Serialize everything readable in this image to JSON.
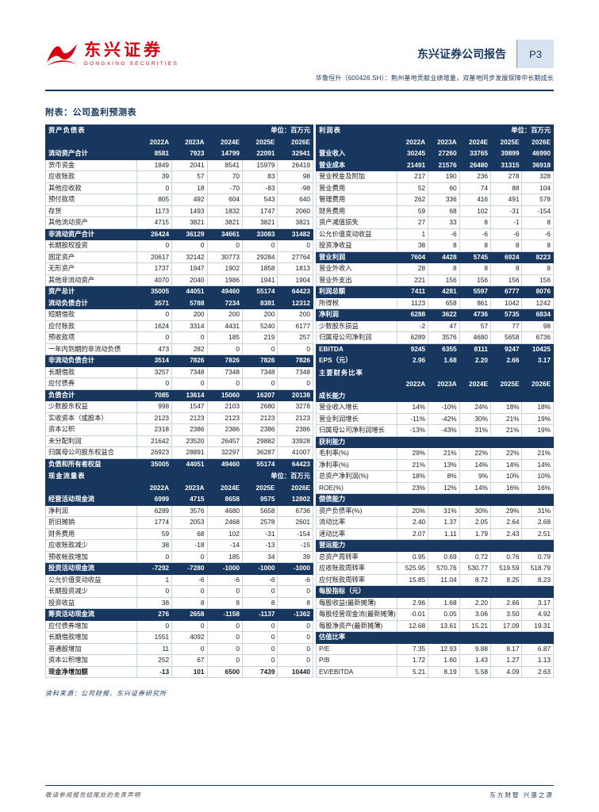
{
  "colors": {
    "navy": "#17375E",
    "brand_red": "#D7000F",
    "page_badge_bg": "#D9E2F0",
    "grid_line": "#C9D3E0"
  },
  "icons": {
    "brand_logo": "dongxing-red-swoosh-emblem"
  },
  "brand": {
    "name_cn": "东兴证券",
    "name_en": "DONGXING SECURITIES"
  },
  "header": {
    "report_label": "东兴证券公司报告",
    "page_number": "P3",
    "subtitle": "华鲁恒升（600426.SH）：荆州基地贡献业绩增量，双基地同步发展保障中长期成长"
  },
  "section_title": "附表：公司盈利预测表",
  "unit_label": "单位：百万元",
  "years": [
    "2022A",
    "2023A",
    "2024E",
    "2025E",
    "2026E"
  ],
  "tables": {
    "balance_sheet": {
      "title": "资产负债表",
      "show_unit": true,
      "rows": [
        {
          "label": "流动资产合计",
          "style": "hl",
          "values": [
            "8581",
            "7923",
            "14799",
            "22091",
            "32941"
          ]
        },
        {
          "label": "货币资金",
          "style": "normal",
          "values": [
            "1849",
            "2041",
            "8541",
            "15979",
            "26419"
          ]
        },
        {
          "label": "应收账款",
          "style": "normal",
          "values": [
            "39",
            "57",
            "70",
            "83",
            "98"
          ]
        },
        {
          "label": "其他应收款",
          "style": "normal",
          "values": [
            "0",
            "18",
            "-70",
            "-83",
            "-98"
          ]
        },
        {
          "label": "预付款项",
          "style": "normal",
          "values": [
            "805",
            "492",
            "604",
            "543",
            "640"
          ]
        },
        {
          "label": "存货",
          "style": "normal",
          "values": [
            "1173",
            "1493",
            "1832",
            "1747",
            "2060"
          ]
        },
        {
          "label": "其他流动资产",
          "style": "normal",
          "values": [
            "4715",
            "3821",
            "3821",
            "3821",
            "3821"
          ]
        },
        {
          "label": "非流动资产合计",
          "style": "hl",
          "values": [
            "26424",
            "36129",
            "34661",
            "33083",
            "31482"
          ]
        },
        {
          "label": "长期股权投资",
          "style": "normal",
          "values": [
            "0",
            "0",
            "0",
            "0",
            "0"
          ]
        },
        {
          "label": "固定资产",
          "style": "normal",
          "values": [
            "20617",
            "32142",
            "30773",
            "29284",
            "27764"
          ]
        },
        {
          "label": "无形资产",
          "style": "normal",
          "values": [
            "1737",
            "1947",
            "1902",
            "1858",
            "1813"
          ]
        },
        {
          "label": "其他非流动资产",
          "style": "normal",
          "values": [
            "4070",
            "2040",
            "1986",
            "1941",
            "1904"
          ]
        },
        {
          "label": "资产总计",
          "style": "hl",
          "values": [
            "35005",
            "44051",
            "49460",
            "55174",
            "64423"
          ]
        },
        {
          "label": "流动负债合计",
          "style": "hl",
          "values": [
            "3571",
            "5788",
            "7234",
            "8381",
            "12312"
          ]
        },
        {
          "label": "短期借款",
          "style": "normal",
          "values": [
            "0",
            "200",
            "200",
            "200",
            "200"
          ]
        },
        {
          "label": "应付账款",
          "style": "normal",
          "values": [
            "1624",
            "3314",
            "4431",
            "5240",
            "6177"
          ]
        },
        {
          "label": "预收款项",
          "style": "normal",
          "values": [
            "0",
            "0",
            "185",
            "219",
            "257"
          ]
        },
        {
          "label": "一年内到期的非流动负债",
          "style": "normal",
          "values": [
            "473",
            "282",
            "0",
            "0",
            "0"
          ]
        },
        {
          "label": "非流动负债合计",
          "style": "hl",
          "values": [
            "3514",
            "7826",
            "7826",
            "7826",
            "7826"
          ]
        },
        {
          "label": "长期借款",
          "style": "normal",
          "values": [
            "3257",
            "7348",
            "7348",
            "7348",
            "7348"
          ]
        },
        {
          "label": "应付债券",
          "style": "normal",
          "values": [
            "0",
            "0",
            "0",
            "0",
            "0"
          ]
        },
        {
          "label": "负债合计",
          "style": "hl",
          "values": [
            "7085",
            "13614",
            "15060",
            "16207",
            "20138"
          ]
        },
        {
          "label": "少数股东权益",
          "style": "normal",
          "values": [
            "998",
            "1547",
            "2103",
            "2680",
            "3278"
          ]
        },
        {
          "label": "实收资本（或股本）",
          "style": "normal",
          "values": [
            "2123",
            "2123",
            "2123",
            "2123",
            "2123"
          ]
        },
        {
          "label": "资本公积",
          "style": "normal",
          "values": [
            "2318",
            "2386",
            "2386",
            "2386",
            "2386"
          ]
        },
        {
          "label": "未分配利润",
          "style": "normal",
          "values": [
            "21642",
            "23520",
            "26457",
            "29882",
            "33928"
          ]
        },
        {
          "label": "归属母公司股东权益合",
          "style": "normal",
          "values": [
            "26923",
            "28891",
            "32297",
            "36287",
            "41007"
          ]
        },
        {
          "label": "负债和所有者权益",
          "style": "hl",
          "values": [
            "35005",
            "44051",
            "49460",
            "55174",
            "64423"
          ]
        }
      ]
    },
    "cash_flow": {
      "title": "现金流量表",
      "show_unit": true,
      "rows": [
        {
          "label": "经营活动现金流",
          "style": "hl",
          "values": [
            "6999",
            "4715",
            "8658",
            "9575",
            "12802"
          ]
        },
        {
          "label": "净利润",
          "style": "normal",
          "values": [
            "6289",
            "3576",
            "4680",
            "5658",
            "6736"
          ]
        },
        {
          "label": "折旧摊销",
          "style": "normal",
          "values": [
            "1774",
            "2053",
            "2468",
            "2578",
            "2601"
          ]
        },
        {
          "label": "财务费用",
          "style": "normal",
          "values": [
            "59",
            "68",
            "102",
            "-31",
            "-154"
          ]
        },
        {
          "label": "应收账款减少",
          "style": "normal",
          "values": [
            "38",
            "-18",
            "-14",
            "-13",
            "-15"
          ]
        },
        {
          "label": "预收帐款增加",
          "style": "normal",
          "values": [
            "0",
            "0",
            "185",
            "34",
            "39"
          ]
        },
        {
          "label": "投资活动现金流",
          "style": "hl",
          "values": [
            "-7292",
            "-7280",
            "-1000",
            "-1000",
            "-1000"
          ]
        },
        {
          "label": "公允价值变动收益",
          "style": "normal",
          "values": [
            "1",
            "-6",
            "-6",
            "-6",
            "-6"
          ]
        },
        {
          "label": "长期投资减少",
          "style": "normal",
          "values": [
            "0",
            "0",
            "0",
            "0",
            "0"
          ]
        },
        {
          "label": "投资收益",
          "style": "normal",
          "values": [
            "38",
            "8",
            "8",
            "8",
            "8"
          ]
        },
        {
          "label": "筹资活动现金流",
          "style": "hl",
          "values": [
            "276",
            "2658",
            "-1158",
            "-1137",
            "-1362"
          ]
        },
        {
          "label": "应付债券增加",
          "style": "normal",
          "values": [
            "0",
            "0",
            "0",
            "0",
            "0"
          ]
        },
        {
          "label": "长期借款增加",
          "style": "normal",
          "values": [
            "1551",
            "4092",
            "0",
            "0",
            "0"
          ]
        },
        {
          "label": "普通股增加",
          "style": "normal",
          "values": [
            "11",
            "0",
            "0",
            "0",
            "0"
          ]
        },
        {
          "label": "资本公积增加",
          "style": "normal",
          "values": [
            "252",
            "67",
            "0",
            "0",
            "0"
          ]
        },
        {
          "label": "现金净增加额",
          "style": "bold",
          "values": [
            "-13",
            "101",
            "6500",
            "7439",
            "10440"
          ]
        }
      ]
    },
    "income": {
      "title": "利润表",
      "show_unit": true,
      "rows": [
        {
          "label": "营业收入",
          "style": "hl",
          "values": [
            "30245",
            "27260",
            "33765",
            "39899",
            "46990"
          ]
        },
        {
          "label": "营业成本",
          "style": "hl",
          "values": [
            "21491",
            "21576",
            "26480",
            "31315",
            "36918"
          ]
        },
        {
          "label": "营业税金及附加",
          "style": "normal",
          "values": [
            "217",
            "190",
            "236",
            "278",
            "328"
          ]
        },
        {
          "label": "营业费用",
          "style": "normal",
          "values": [
            "52",
            "60",
            "74",
            "88",
            "104"
          ]
        },
        {
          "label": "管理费用",
          "style": "normal",
          "values": [
            "262",
            "336",
            "416",
            "491",
            "578"
          ]
        },
        {
          "label": "财务费用",
          "style": "normal",
          "values": [
            "59",
            "68",
            "102",
            "-31",
            "-154"
          ]
        },
        {
          "label": "资产减值损失",
          "style": "normal",
          "values": [
            "27",
            "33",
            "8",
            "-1",
            "8"
          ]
        },
        {
          "label": "公允价值变动收益",
          "style": "normal",
          "values": [
            "1",
            "-6",
            "-6",
            "-6",
            "-6"
          ]
        },
        {
          "label": "投资净收益",
          "style": "normal",
          "values": [
            "38",
            "8",
            "8",
            "8",
            "8"
          ]
        },
        {
          "label": "营业利润",
          "style": "hl",
          "values": [
            "7604",
            "4428",
            "5745",
            "6924",
            "8223"
          ]
        },
        {
          "label": "营业外收入",
          "style": "normal",
          "values": [
            "28",
            "8",
            "8",
            "8",
            "8"
          ]
        },
        {
          "label": "营业外支出",
          "style": "normal",
          "values": [
            "221",
            "156",
            "156",
            "156",
            "156"
          ]
        },
        {
          "label": "利润总额",
          "style": "hl",
          "values": [
            "7411",
            "4281",
            "5597",
            "6777",
            "8076"
          ]
        },
        {
          "label": "所得税",
          "style": "normal",
          "values": [
            "1123",
            "658",
            "861",
            "1042",
            "1242"
          ]
        },
        {
          "label": "净利润",
          "style": "hl",
          "values": [
            "6288",
            "3622",
            "4736",
            "5735",
            "6834"
          ]
        },
        {
          "label": "少数股东损益",
          "style": "normal",
          "values": [
            "-2",
            "47",
            "57",
            "77",
            "98"
          ]
        },
        {
          "label": "归属母公司净利润",
          "style": "normal",
          "values": [
            "6289",
            "3576",
            "4680",
            "5658",
            "6736"
          ]
        },
        {
          "label": "EBITDA",
          "style": "hl",
          "values": [
            "9245",
            "6355",
            "8111",
            "9247",
            "10425"
          ]
        },
        {
          "label": "EPS（元）",
          "style": "hl",
          "values": [
            "2.96",
            "1.68",
            "2.20",
            "2.66",
            "3.17"
          ]
        }
      ]
    },
    "ratios": {
      "title": "主要财务比率",
      "show_unit": false,
      "rows": [
        {
          "label": "成长能力",
          "style": "section"
        },
        {
          "label": "营业收入增长",
          "style": "normal",
          "values": [
            "14%",
            "-10%",
            "24%",
            "18%",
            "18%"
          ]
        },
        {
          "label": "营业利润增长",
          "style": "normal",
          "values": [
            "-11%",
            "-42%",
            "30%",
            "21%",
            "19%"
          ]
        },
        {
          "label": "归属母公司净利润增长",
          "style": "normal",
          "values": [
            "-13%",
            "-43%",
            "31%",
            "21%",
            "19%"
          ]
        },
        {
          "label": "获利能力",
          "style": "section"
        },
        {
          "label": "毛利率(%)",
          "style": "normal",
          "values": [
            "29%",
            "21%",
            "22%",
            "22%",
            "21%"
          ]
        },
        {
          "label": "净利率(%)",
          "style": "normal",
          "values": [
            "21%",
            "13%",
            "14%",
            "14%",
            "14%"
          ]
        },
        {
          "label": "总资产净利润(%)",
          "style": "normal",
          "values": [
            "18%",
            "8%",
            "9%",
            "10%",
            "10%"
          ]
        },
        {
          "label": "ROE(%)",
          "style": "normal",
          "values": [
            "23%",
            "12%",
            "14%",
            "16%",
            "16%"
          ]
        },
        {
          "label": "偿债能力",
          "style": "section"
        },
        {
          "label": "资产负债率(%)",
          "style": "normal",
          "values": [
            "20%",
            "31%",
            "30%",
            "29%",
            "31%"
          ]
        },
        {
          "label": "流动比率",
          "style": "normal",
          "values": [
            "2.40",
            "1.37",
            "2.05",
            "2.64",
            "2.68"
          ]
        },
        {
          "label": "速动比率",
          "style": "normal",
          "values": [
            "2.07",
            "1.11",
            "1.79",
            "2.43",
            "2.51"
          ]
        },
        {
          "label": "营运能力",
          "style": "section"
        },
        {
          "label": "总资产周转率",
          "style": "normal",
          "values": [
            "0.95",
            "0.69",
            "0.72",
            "0.76",
            "0.79"
          ]
        },
        {
          "label": "应收账款周转率",
          "style": "normal",
          "values": [
            "525.95",
            "570.76",
            "530.77",
            "519.59",
            "518.79"
          ]
        },
        {
          "label": "应付账款周转率",
          "style": "normal",
          "values": [
            "15.85",
            "11.04",
            "8.72",
            "8.25",
            "8.23"
          ]
        },
        {
          "label": "每股指标（元）",
          "style": "section"
        },
        {
          "label": "每股收益(最新摊薄)",
          "style": "normal",
          "values": [
            "2.96",
            "1.68",
            "2.20",
            "2.66",
            "3.17"
          ]
        },
        {
          "label": "每股经营现金流(最新摊薄)",
          "style": "normal",
          "values": [
            "-0.01",
            "0.05",
            "3.06",
            "3.50",
            "4.92"
          ]
        },
        {
          "label": "每股净资产(最新摊薄)",
          "style": "normal",
          "values": [
            "12.68",
            "13.61",
            "15.21",
            "17.09",
            "19.31"
          ]
        },
        {
          "label": "估值比率",
          "style": "section"
        },
        {
          "label": "P/E",
          "style": "normal",
          "values": [
            "7.35",
            "12.93",
            "9.88",
            "8.17",
            "6.87"
          ]
        },
        {
          "label": "P/B",
          "style": "normal",
          "values": [
            "1.72",
            "1.60",
            "1.43",
            "1.27",
            "1.13"
          ]
        },
        {
          "label": "EV/EBITDA",
          "style": "normal",
          "values": [
            "5.21",
            "8.19",
            "5.58",
            "4.09",
            "2.63"
          ]
        }
      ]
    }
  },
  "source_note": "资料来源：公司财报、东兴证券研究所",
  "footer": {
    "disclaimer": "敬请参阅报告结尾处的免责声明",
    "slogan": "东方财智 兴盛之源"
  }
}
